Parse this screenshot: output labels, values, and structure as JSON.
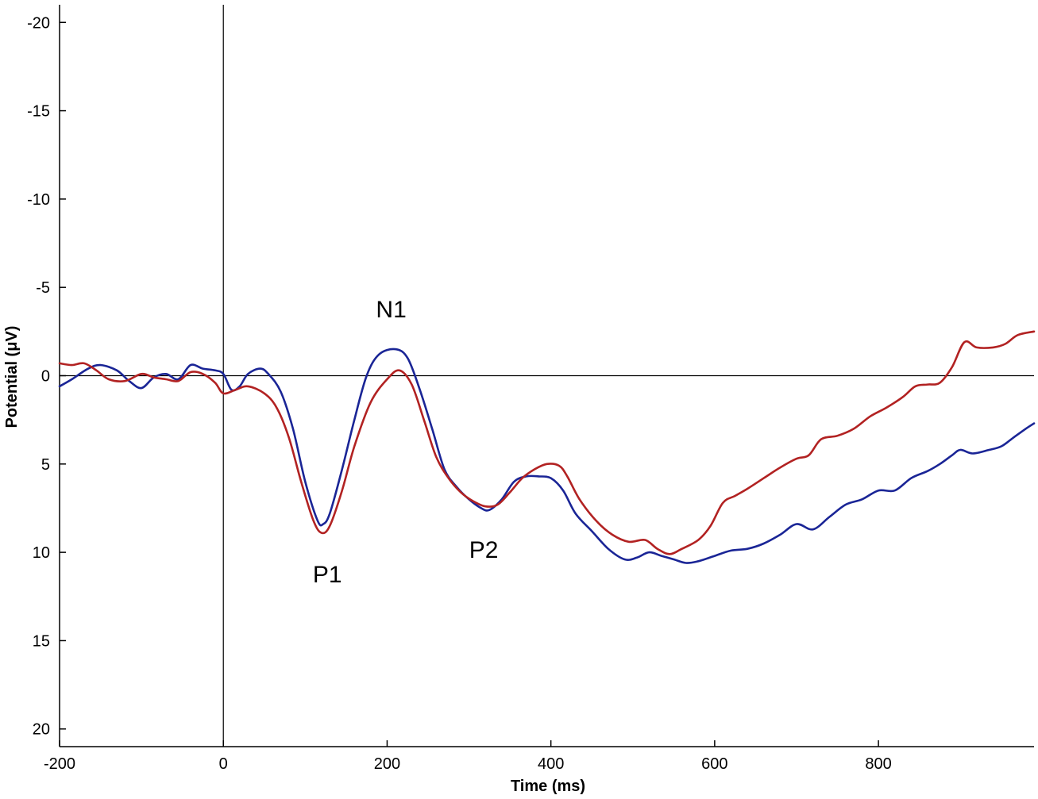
{
  "chart_data": {
    "type": "line",
    "xlabel": "Time (ms)",
    "ylabel": "Potential (μV)",
    "xlim": [
      -200,
      990
    ],
    "ylim": [
      -21,
      21
    ],
    "y_inverted": true,
    "grid": false,
    "legend": "none",
    "x_ticks": [
      -200,
      0,
      200,
      400,
      600,
      800
    ],
    "y_ticks": [
      -20,
      -15,
      -10,
      -5,
      0,
      5,
      10,
      15,
      20
    ],
    "x_tick_labels": [
      "-200",
      "0",
      "200",
      "400",
      "600",
      "800"
    ],
    "y_tick_labels": [
      "-20",
      "-15",
      "-10",
      "-5",
      "0",
      "5",
      "10",
      "15",
      "20"
    ],
    "reference_lines": {
      "x_zero": 0,
      "y_zero": 0
    },
    "annotations": [
      {
        "text": "N1",
        "x": 205,
        "y": -3.3
      },
      {
        "text": "P1",
        "x": 127,
        "y": 11.7
      },
      {
        "text": "P2",
        "x": 318,
        "y": 10.3
      }
    ],
    "series": [
      {
        "color": "#1a2596",
        "points": [
          [
            -200,
            0.6
          ],
          [
            -185,
            0.2
          ],
          [
            -165,
            -0.4
          ],
          [
            -150,
            -0.6
          ],
          [
            -130,
            -0.3
          ],
          [
            -115,
            0.3
          ],
          [
            -100,
            0.7
          ],
          [
            -85,
            0.1
          ],
          [
            -70,
            -0.1
          ],
          [
            -55,
            0.2
          ],
          [
            -40,
            -0.6
          ],
          [
            -25,
            -0.4
          ],
          [
            -10,
            -0.3
          ],
          [
            0,
            -0.1
          ],
          [
            10,
            0.8
          ],
          [
            20,
            0.6
          ],
          [
            30,
            -0.1
          ],
          [
            45,
            -0.4
          ],
          [
            55,
            -0.1
          ],
          [
            70,
            0.9
          ],
          [
            85,
            3.0
          ],
          [
            100,
            6.0
          ],
          [
            115,
            8.2
          ],
          [
            122,
            8.4
          ],
          [
            130,
            7.8
          ],
          [
            145,
            5.3
          ],
          [
            160,
            2.5
          ],
          [
            175,
            0.0
          ],
          [
            190,
            -1.2
          ],
          [
            210,
            -1.5
          ],
          [
            225,
            -1.0
          ],
          [
            240,
            0.8
          ],
          [
            255,
            3.0
          ],
          [
            270,
            5.3
          ],
          [
            285,
            6.3
          ],
          [
            300,
            7.0
          ],
          [
            315,
            7.5
          ],
          [
            325,
            7.6
          ],
          [
            340,
            7.0
          ],
          [
            355,
            6.0
          ],
          [
            370,
            5.7
          ],
          [
            385,
            5.7
          ],
          [
            400,
            5.8
          ],
          [
            415,
            6.5
          ],
          [
            430,
            7.8
          ],
          [
            450,
            8.8
          ],
          [
            470,
            9.8
          ],
          [
            490,
            10.4
          ],
          [
            505,
            10.3
          ],
          [
            520,
            10.0
          ],
          [
            535,
            10.2
          ],
          [
            550,
            10.4
          ],
          [
            565,
            10.6
          ],
          [
            580,
            10.5
          ],
          [
            600,
            10.2
          ],
          [
            620,
            9.9
          ],
          [
            640,
            9.8
          ],
          [
            660,
            9.5
          ],
          [
            680,
            9.0
          ],
          [
            700,
            8.4
          ],
          [
            720,
            8.7
          ],
          [
            740,
            8.0
          ],
          [
            760,
            7.3
          ],
          [
            780,
            7.0
          ],
          [
            800,
            6.5
          ],
          [
            820,
            6.5
          ],
          [
            840,
            5.8
          ],
          [
            860,
            5.4
          ],
          [
            875,
            5.0
          ],
          [
            890,
            4.5
          ],
          [
            900,
            4.2
          ],
          [
            915,
            4.4
          ],
          [
            935,
            4.2
          ],
          [
            950,
            4.0
          ],
          [
            965,
            3.5
          ],
          [
            980,
            3.0
          ],
          [
            990,
            2.7
          ]
        ]
      },
      {
        "color": "#b22222",
        "points": [
          [
            -200,
            -0.7
          ],
          [
            -185,
            -0.6
          ],
          [
            -170,
            -0.7
          ],
          [
            -155,
            -0.3
          ],
          [
            -140,
            0.2
          ],
          [
            -120,
            0.3
          ],
          [
            -100,
            -0.1
          ],
          [
            -85,
            0.1
          ],
          [
            -70,
            0.2
          ],
          [
            -55,
            0.3
          ],
          [
            -40,
            -0.2
          ],
          [
            -25,
            -0.1
          ],
          [
            -10,
            0.4
          ],
          [
            0,
            1.0
          ],
          [
            15,
            0.8
          ],
          [
            30,
            0.6
          ],
          [
            50,
            1.0
          ],
          [
            65,
            1.8
          ],
          [
            80,
            3.5
          ],
          [
            95,
            6.0
          ],
          [
            110,
            8.2
          ],
          [
            120,
            8.9
          ],
          [
            130,
            8.5
          ],
          [
            145,
            6.5
          ],
          [
            160,
            4.0
          ],
          [
            180,
            1.5
          ],
          [
            200,
            0.2
          ],
          [
            215,
            -0.3
          ],
          [
            230,
            0.5
          ],
          [
            245,
            2.5
          ],
          [
            260,
            4.6
          ],
          [
            275,
            5.8
          ],
          [
            290,
            6.6
          ],
          [
            305,
            7.1
          ],
          [
            320,
            7.4
          ],
          [
            335,
            7.3
          ],
          [
            350,
            6.6
          ],
          [
            365,
            5.8
          ],
          [
            380,
            5.3
          ],
          [
            395,
            5.0
          ],
          [
            410,
            5.1
          ],
          [
            420,
            5.7
          ],
          [
            435,
            7.0
          ],
          [
            455,
            8.2
          ],
          [
            475,
            9.0
          ],
          [
            495,
            9.4
          ],
          [
            515,
            9.3
          ],
          [
            530,
            9.8
          ],
          [
            545,
            10.1
          ],
          [
            560,
            9.8
          ],
          [
            580,
            9.3
          ],
          [
            595,
            8.5
          ],
          [
            610,
            7.2
          ],
          [
            625,
            6.8
          ],
          [
            640,
            6.4
          ],
          [
            660,
            5.8
          ],
          [
            680,
            5.2
          ],
          [
            700,
            4.7
          ],
          [
            715,
            4.5
          ],
          [
            730,
            3.6
          ],
          [
            750,
            3.4
          ],
          [
            770,
            3.0
          ],
          [
            790,
            2.3
          ],
          [
            810,
            1.8
          ],
          [
            830,
            1.2
          ],
          [
            845,
            0.6
          ],
          [
            860,
            0.5
          ],
          [
            875,
            0.4
          ],
          [
            890,
            -0.5
          ],
          [
            905,
            -1.9
          ],
          [
            920,
            -1.6
          ],
          [
            940,
            -1.6
          ],
          [
            955,
            -1.8
          ],
          [
            970,
            -2.3
          ],
          [
            990,
            -2.5
          ]
        ]
      }
    ]
  }
}
